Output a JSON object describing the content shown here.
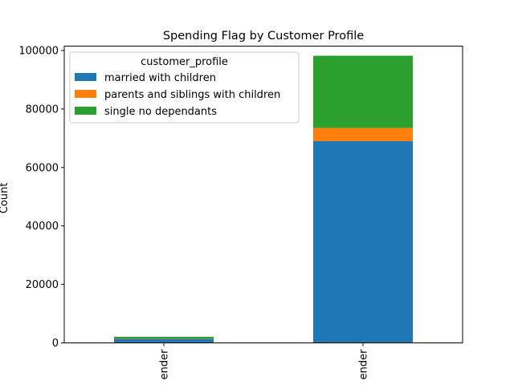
{
  "chart_data": {
    "type": "bar",
    "stacked": true,
    "title": "Spending Flag by Customer Profile",
    "xlabel": "",
    "ylabel": "Count",
    "ylim": [
      0,
      100000
    ],
    "yticks": [
      0,
      20000,
      40000,
      60000,
      80000,
      100000
    ],
    "ytick_labels": [
      "0",
      "20000",
      "40000",
      "60000",
      "80000",
      "100000"
    ],
    "categories": [
      "ender",
      "ender"
    ],
    "legend": {
      "title": "customer_profile",
      "placement": "upper-left"
    },
    "series": [
      {
        "name": "married with children",
        "color": "#1f77b4",
        "values": [
          1400,
          69000
        ]
      },
      {
        "name": "parents and siblings with children",
        "color": "#ff7f0e",
        "values": [
          100,
          4500
        ]
      },
      {
        "name": "single no dependants",
        "color": "#2ca02c",
        "values": [
          600,
          24700
        ]
      }
    ]
  }
}
